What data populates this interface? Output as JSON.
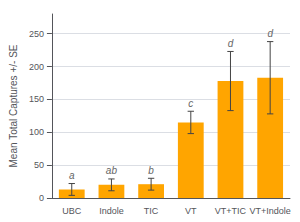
{
  "chart_data": {
    "type": "bar",
    "categories": [
      "UBC",
      "Indole",
      "TIC",
      "VT",
      "VT+TIC",
      "VT+Indole"
    ],
    "values": [
      13,
      20,
      21,
      115,
      178,
      183
    ],
    "errors": [
      9,
      9,
      9,
      17,
      45,
      55
    ],
    "annotations": [
      "a",
      "ab",
      "b",
      "c",
      "d",
      "d"
    ],
    "color": "#FFA500",
    "ylabel": "Mean Total Captures +/- SE",
    "ylim": [
      0,
      280
    ],
    "yticks": [
      0,
      50,
      100,
      150,
      200,
      250
    ],
    "grid": true
  }
}
